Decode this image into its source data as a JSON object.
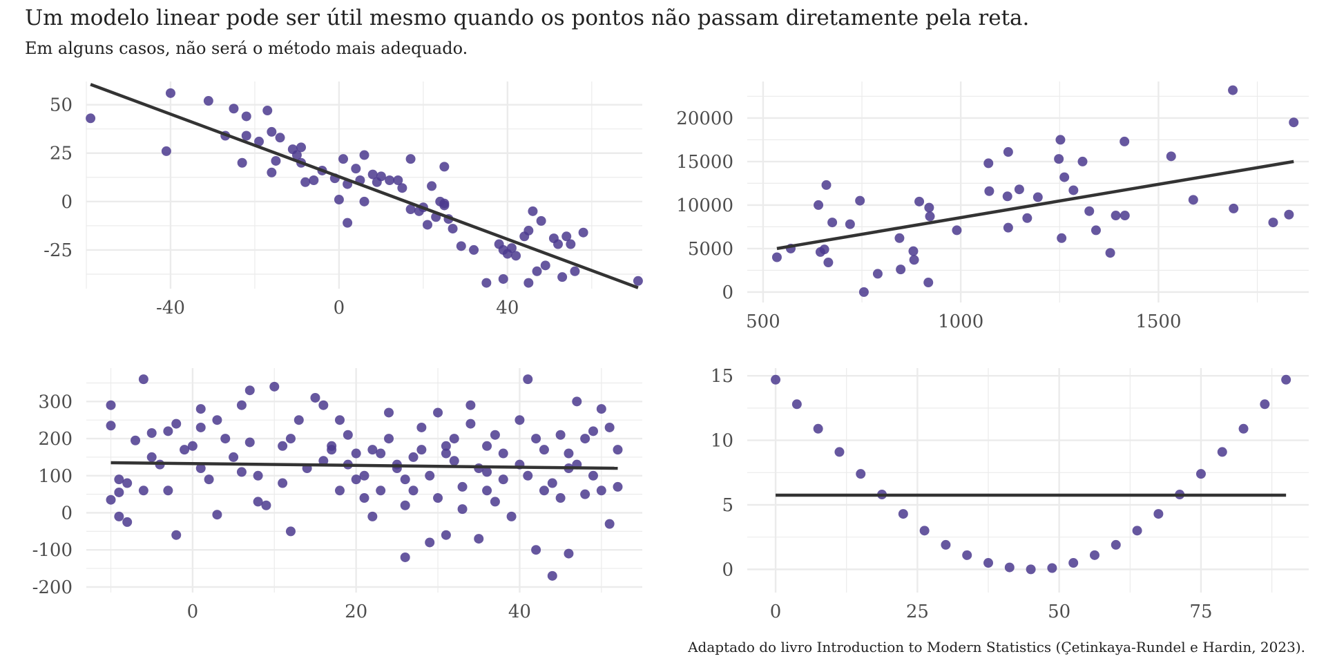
{
  "title": "Um modelo linear pode ser útil mesmo quando os pontos não passam diretamente pela reta.",
  "subtitle": "Em alguns casos, não será o método mais adequado.",
  "caption": "Adaptado do livro Introduction to Modern Statistics (Çetinkaya-Rundel e Hardin, 2023).",
  "colors": {
    "point": "#4B3A8E",
    "line": "#333333",
    "grid": "#EBEBEB",
    "tick": "#4D4D4D"
  },
  "chart_data": [
    {
      "type": "scatter",
      "title": "",
      "xlabel": "",
      "ylabel": "",
      "xlim": [
        -60,
        72
      ],
      "ylim": [
        -45,
        62
      ],
      "xticks": [
        -40,
        0,
        40
      ],
      "yticks": [
        -25,
        0,
        25,
        50
      ],
      "points": [
        [
          -59,
          43
        ],
        [
          -40,
          56
        ],
        [
          -41,
          26
        ],
        [
          -31,
          52
        ],
        [
          -27,
          34
        ],
        [
          -25,
          48
        ],
        [
          -23,
          20
        ],
        [
          -22,
          44
        ],
        [
          -22,
          34
        ],
        [
          -19,
          31
        ],
        [
          -17,
          47
        ],
        [
          -16,
          36
        ],
        [
          -16,
          15
        ],
        [
          -15,
          21
        ],
        [
          -14,
          33
        ],
        [
          -11,
          27
        ],
        [
          -10,
          24
        ],
        [
          -9,
          28
        ],
        [
          -9,
          20
        ],
        [
          -8,
          10
        ],
        [
          -6,
          11
        ],
        [
          -4,
          16
        ],
        [
          -1,
          12
        ],
        [
          0,
          1
        ],
        [
          1,
          22
        ],
        [
          2,
          9
        ],
        [
          2,
          -11
        ],
        [
          4,
          17
        ],
        [
          5,
          11
        ],
        [
          6,
          0
        ],
        [
          6,
          24
        ],
        [
          8,
          14
        ],
        [
          9,
          10
        ],
        [
          10,
          13
        ],
        [
          12,
          11
        ],
        [
          14,
          11
        ],
        [
          15,
          7
        ],
        [
          17,
          22
        ],
        [
          17,
          -4
        ],
        [
          19,
          -5
        ],
        [
          20,
          -3
        ],
        [
          21,
          -12
        ],
        [
          22,
          8
        ],
        [
          23,
          -8
        ],
        [
          24,
          0
        ],
        [
          25,
          -1
        ],
        [
          25,
          18
        ],
        [
          25,
          -2
        ],
        [
          26,
          -9
        ],
        [
          27,
          -14
        ],
        [
          29,
          -23
        ],
        [
          32,
          -25
        ],
        [
          35,
          -42
        ],
        [
          38,
          -22
        ],
        [
          39,
          -25
        ],
        [
          39,
          -40
        ],
        [
          40,
          -27
        ],
        [
          41,
          -24
        ],
        [
          42,
          -28
        ],
        [
          44,
          -18
        ],
        [
          45,
          -15
        ],
        [
          45,
          -42
        ],
        [
          46,
          -5
        ],
        [
          47,
          -36
        ],
        [
          48,
          -10
        ],
        [
          49,
          -33
        ],
        [
          51,
          -19
        ],
        [
          52,
          -22
        ],
        [
          53,
          -39
        ],
        [
          54,
          -18
        ],
        [
          55,
          -22
        ],
        [
          56,
          -36
        ],
        [
          58,
          -16
        ],
        [
          71,
          -41
        ]
      ],
      "line": [
        [
          -59,
          60.5
        ],
        [
          71,
          -44.5
        ]
      ]
    },
    {
      "type": "scatter",
      "title": "",
      "xlabel": "",
      "ylabel": "",
      "xlim": [
        460,
        1880
      ],
      "ylim": [
        -1200,
        24200
      ],
      "xticks": [
        500,
        1000,
        1500
      ],
      "yticks": [
        0,
        5000,
        10000,
        15000,
        20000
      ],
      "points": [
        [
          535,
          4000
        ],
        [
          570,
          5000
        ],
        [
          640,
          10000
        ],
        [
          645,
          4600
        ],
        [
          655,
          4900
        ],
        [
          660,
          12300
        ],
        [
          665,
          3400
        ],
        [
          675,
          8000
        ],
        [
          720,
          7800
        ],
        [
          745,
          10500
        ],
        [
          755,
          0
        ],
        [
          790,
          2100
        ],
        [
          845,
          6200
        ],
        [
          848,
          2600
        ],
        [
          880,
          4700
        ],
        [
          882,
          3700
        ],
        [
          895,
          10400
        ],
        [
          918,
          1100
        ],
        [
          920,
          9700
        ],
        [
          922,
          8700
        ],
        [
          990,
          7100
        ],
        [
          1070,
          14800
        ],
        [
          1072,
          11600
        ],
        [
          1118,
          11000
        ],
        [
          1120,
          16100
        ],
        [
          1120,
          7400
        ],
        [
          1148,
          11800
        ],
        [
          1168,
          8500
        ],
        [
          1195,
          10900
        ],
        [
          1248,
          15300
        ],
        [
          1252,
          17500
        ],
        [
          1255,
          6200
        ],
        [
          1262,
          13200
        ],
        [
          1285,
          11700
        ],
        [
          1308,
          15000
        ],
        [
          1325,
          9300
        ],
        [
          1342,
          7100
        ],
        [
          1378,
          4500
        ],
        [
          1392,
          8800
        ],
        [
          1414,
          17300
        ],
        [
          1415,
          8800
        ],
        [
          1532,
          15600
        ],
        [
          1588,
          10600
        ],
        [
          1688,
          23200
        ],
        [
          1690,
          9600
        ],
        [
          1790,
          8000
        ],
        [
          1830,
          8900
        ],
        [
          1842,
          19500
        ]
      ],
      "line": [
        [
          535,
          5000
        ],
        [
          1842,
          15000
        ]
      ]
    },
    {
      "type": "scatter",
      "title": "",
      "xlabel": "",
      "ylabel": "",
      "xlim": [
        -13,
        55
      ],
      "ylim": [
        -215,
        390
      ],
      "xticks": [
        0,
        20,
        40
      ],
      "yticks": [
        -200,
        -100,
        0,
        100,
        200,
        300
      ],
      "points": [
        [
          -10,
          290
        ],
        [
          -10,
          235
        ],
        [
          -10,
          35
        ],
        [
          -9,
          90
        ],
        [
          -9,
          -10
        ],
        [
          -9,
          55
        ],
        [
          -8,
          -25
        ],
        [
          -8,
          80
        ],
        [
          -7,
          195
        ],
        [
          -6,
          360
        ],
        [
          -6,
          60
        ],
        [
          -5,
          150
        ],
        [
          -5,
          215
        ],
        [
          -3,
          220
        ],
        [
          -3,
          60
        ],
        [
          -2,
          240
        ],
        [
          -2,
          -60
        ],
        [
          -1,
          170
        ],
        [
          0,
          180
        ],
        [
          1,
          230
        ],
        [
          1,
          280
        ],
        [
          1,
          120
        ],
        [
          2,
          90
        ],
        [
          3,
          250
        ],
        [
          3,
          -5
        ],
        [
          4,
          200
        ],
        [
          5,
          150
        ],
        [
          6,
          290
        ],
        [
          7,
          330
        ],
        [
          7,
          190
        ],
        [
          8,
          100
        ],
        [
          8,
          30
        ],
        [
          9,
          20
        ],
        [
          10,
          340
        ],
        [
          11,
          180
        ],
        [
          12,
          200
        ],
        [
          12,
          -50
        ],
        [
          13,
          250
        ],
        [
          14,
          120
        ],
        [
          15,
          310
        ],
        [
          16,
          290
        ],
        [
          17,
          170
        ],
        [
          17,
          180
        ],
        [
          18,
          60
        ],
        [
          18,
          250
        ],
        [
          19,
          210
        ],
        [
          19,
          130
        ],
        [
          20,
          90
        ],
        [
          20,
          160
        ],
        [
          21,
          100
        ],
        [
          21,
          40
        ],
        [
          22,
          170
        ],
        [
          22,
          -10
        ],
        [
          23,
          160
        ],
        [
          23,
          60
        ],
        [
          24,
          270
        ],
        [
          24,
          200
        ],
        [
          25,
          120
        ],
        [
          25,
          130
        ],
        [
          26,
          20
        ],
        [
          26,
          -120
        ],
        [
          27,
          60
        ],
        [
          27,
          150
        ],
        [
          28,
          170
        ],
        [
          28,
          230
        ],
        [
          29,
          100
        ],
        [
          29,
          -80
        ],
        [
          30,
          40
        ],
        [
          30,
          270
        ],
        [
          31,
          180
        ],
        [
          31,
          -60
        ],
        [
          32,
          140
        ],
        [
          32,
          200
        ],
        [
          33,
          70
        ],
        [
          33,
          10
        ],
        [
          34,
          290
        ],
        [
          34,
          240
        ],
        [
          35,
          120
        ],
        [
          35,
          -70
        ],
        [
          36,
          60
        ],
        [
          36,
          180
        ],
        [
          37,
          30
        ],
        [
          37,
          210
        ],
        [
          38,
          90
        ],
        [
          38,
          160
        ],
        [
          39,
          -10
        ],
        [
          40,
          250
        ],
        [
          40,
          130
        ],
        [
          41,
          100
        ],
        [
          41,
          360
        ],
        [
          42,
          200
        ],
        [
          42,
          -100
        ],
        [
          43,
          60
        ],
        [
          43,
          170
        ],
        [
          44,
          80
        ],
        [
          44,
          -170
        ],
        [
          45,
          40
        ],
        [
          45,
          210
        ],
        [
          46,
          160
        ],
        [
          46,
          -110
        ],
        [
          47,
          300
        ],
        [
          47,
          130
        ],
        [
          48,
          50
        ],
        [
          48,
          200
        ],
        [
          49,
          100
        ],
        [
          49,
          220
        ],
        [
          50,
          60
        ],
        [
          50,
          280
        ],
        [
          51,
          -30
        ],
        [
          51,
          230
        ],
        [
          52,
          170
        ],
        [
          52,
          70
        ],
        [
          -4,
          130
        ],
        [
          6,
          110
        ],
        [
          16,
          140
        ],
        [
          26,
          90
        ],
        [
          36,
          110
        ],
        [
          46,
          120
        ],
        [
          11,
          80
        ],
        [
          31,
          160
        ]
      ],
      "line": [
        [
          -10,
          135
        ],
        [
          52,
          120
        ]
      ]
    },
    {
      "type": "scatter",
      "title": "",
      "xlabel": "",
      "ylabel": "",
      "xlim": [
        -5,
        94
      ],
      "ylim": [
        -1.8,
        15.6
      ],
      "xticks": [
        0,
        25,
        50,
        75
      ],
      "yticks": [
        0,
        5,
        10,
        15
      ],
      "points": [
        [
          0,
          14.7
        ],
        [
          3.75,
          12.8
        ],
        [
          7.5,
          10.9
        ],
        [
          11.25,
          9.1
        ],
        [
          15,
          7.4
        ],
        [
          18.75,
          5.8
        ],
        [
          22.5,
          4.3
        ],
        [
          26.25,
          3.0
        ],
        [
          30,
          1.9
        ],
        [
          33.75,
          1.1
        ],
        [
          37.5,
          0.5
        ],
        [
          41.25,
          0.15
        ],
        [
          45,
          0
        ],
        [
          48.75,
          0.1
        ],
        [
          52.5,
          0.5
        ],
        [
          56.25,
          1.1
        ],
        [
          60,
          1.9
        ],
        [
          63.75,
          3.0
        ],
        [
          67.5,
          4.3
        ],
        [
          71.25,
          5.8
        ],
        [
          75,
          7.4
        ],
        [
          78.75,
          9.1
        ],
        [
          82.5,
          10.9
        ],
        [
          86.25,
          12.8
        ],
        [
          90,
          14.7
        ]
      ],
      "line": [
        [
          0,
          5.75
        ],
        [
          90,
          5.75
        ]
      ]
    }
  ]
}
